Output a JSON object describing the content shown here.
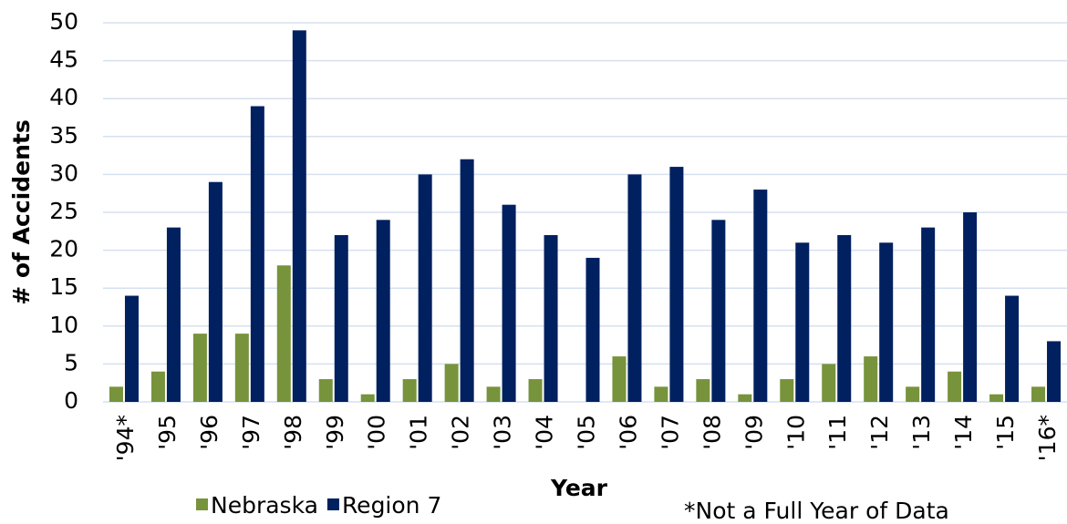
{
  "chart_data": {
    "type": "bar",
    "y_label": "# of Accidents",
    "x_label": "Year",
    "note": "*Not a Full Year of Data",
    "categories": [
      "'94*",
      "'95",
      "'96",
      "'97",
      "'98",
      "'99",
      "'00",
      "'01",
      "'02",
      "'03",
      "'04",
      "'05",
      "'06",
      "'07",
      "'08",
      "'09",
      "'10",
      "'11",
      "'12",
      "'13",
      "'14",
      "'15",
      "'16*"
    ],
    "series": [
      {
        "name": "Nebraska",
        "color": "#77933c",
        "values": [
          2,
          4,
          9,
          9,
          18,
          3,
          1,
          3,
          5,
          2,
          3,
          0,
          6,
          2,
          3,
          1,
          3,
          5,
          6,
          2,
          4,
          1,
          2
        ]
      },
      {
        "name": "Region 7",
        "color": "#002060",
        "values": [
          14,
          23,
          29,
          39,
          49,
          22,
          24,
          30,
          32,
          26,
          22,
          19,
          30,
          31,
          24,
          28,
          21,
          22,
          21,
          23,
          25,
          14,
          8
        ]
      }
    ],
    "ylim": [
      0,
      50
    ],
    "yticks": [
      0,
      5,
      10,
      15,
      20,
      25,
      30,
      35,
      40,
      45,
      50
    ],
    "grid": true
  }
}
